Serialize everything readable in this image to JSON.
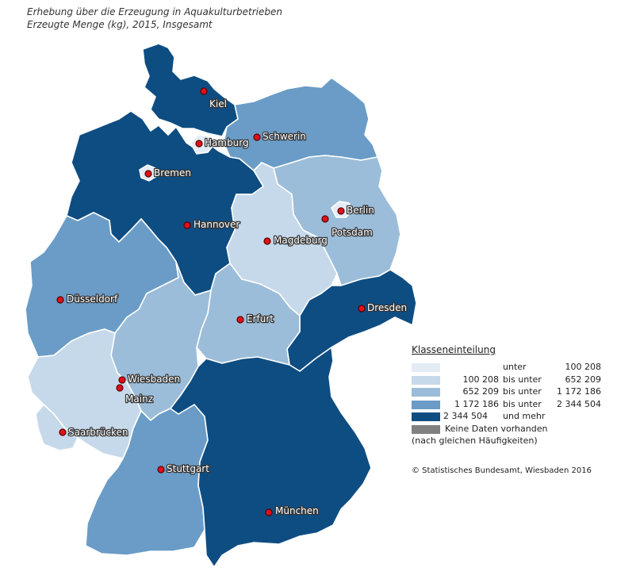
{
  "title": {
    "line1": "Erhebung über die Erzeugung in Aquakulturbetrieben",
    "line2": "Erzeugte Menge (kg), 2015, Insgesamt"
  },
  "colors": {
    "class1": "#e3ecf5",
    "class2": "#c6d9ea",
    "class3": "#9bbdd9",
    "class4": "#6a9cc7",
    "class5": "#0e4d82",
    "nodata": "#808080"
  },
  "states": [
    {
      "name": "Schleswig-Holstein",
      "class": 5
    },
    {
      "name": "Hamburg",
      "class": 1
    },
    {
      "name": "Niedersachsen",
      "class": 5
    },
    {
      "name": "Bremen",
      "class": 1
    },
    {
      "name": "Mecklenburg-Vorpommern",
      "class": 4
    },
    {
      "name": "Brandenburg",
      "class": 3
    },
    {
      "name": "Berlin",
      "class": 1
    },
    {
      "name": "Sachsen-Anhalt",
      "class": 2
    },
    {
      "name": "Sachsen",
      "class": 5
    },
    {
      "name": "Thüringen",
      "class": 3
    },
    {
      "name": "Hessen",
      "class": 3
    },
    {
      "name": "Nordrhein-Westfalen",
      "class": 4
    },
    {
      "name": "Rheinland-Pfalz",
      "class": 2
    },
    {
      "name": "Saarland",
      "class": 2
    },
    {
      "name": "Baden-Württemberg",
      "class": 4
    },
    {
      "name": "Bayern",
      "class": 5
    }
  ],
  "cities": [
    {
      "name": "Kiel"
    },
    {
      "name": "Hamburg"
    },
    {
      "name": "Schwerin"
    },
    {
      "name": "Bremen"
    },
    {
      "name": "Berlin"
    },
    {
      "name": "Potsdam"
    },
    {
      "name": "Hannover"
    },
    {
      "name": "Magdeburg"
    },
    {
      "name": "Düsseldorf"
    },
    {
      "name": "Dresden"
    },
    {
      "name": "Erfurt"
    },
    {
      "name": "Wiesbaden"
    },
    {
      "name": "Mainz"
    },
    {
      "name": "Saarbrücken"
    },
    {
      "name": "Stuttgart"
    },
    {
      "name": "München"
    }
  ],
  "legend": {
    "heading": "Klasseneinteilung",
    "rows": [
      {
        "from": "",
        "op": "unter",
        "to": "100 208"
      },
      {
        "from": "100 208",
        "op": "bis unter",
        "to": "652 209"
      },
      {
        "from": "652 209",
        "op": "bis unter",
        "to": "1 172 186"
      },
      {
        "from": "1 172 186",
        "op": "bis unter",
        "to": "2 344 504"
      },
      {
        "from": "2 344 504",
        "op": "und mehr",
        "to": ""
      }
    ],
    "nodata": "Keine Daten vorhanden",
    "note": "(nach gleichen Häufigkeiten)"
  },
  "source": "© Statistisches Bundesamt, Wiesbaden 2016"
}
